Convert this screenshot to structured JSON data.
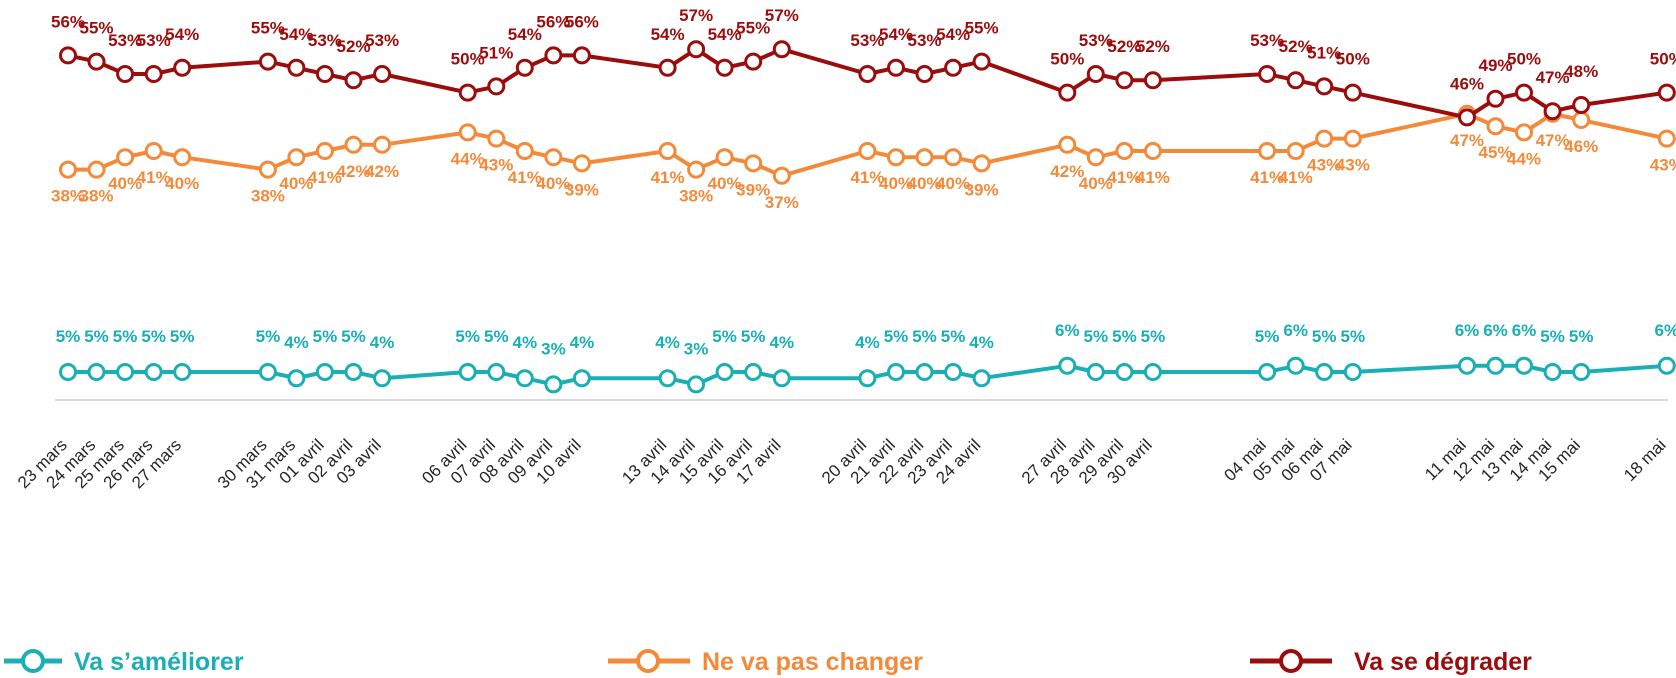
{
  "chart_data": {
    "type": "line",
    "title": "",
    "xlabel": "",
    "ylabel": "",
    "ylim": [
      0,
      60
    ],
    "grid": false,
    "legend_position": "bottom",
    "colors": {
      "improve": "#1aafb5",
      "unchanged": "#f38a3a",
      "worsen": "#9b0d0d",
      "axis": "#d9d9d9",
      "tick_text": "#262626"
    },
    "x": [
      "23 mars",
      "24 mars",
      "25 mars",
      "26 mars",
      "27 mars",
      "30 mars",
      "31 mars",
      "01 avril",
      "02 avril",
      "03 avril",
      "06 avril",
      "07 avril",
      "08 avril",
      "09 avril",
      "10 avril",
      "13 avril",
      "14 avril",
      "15 avril",
      "16 avril",
      "17 avril",
      "20 avril",
      "21 avril",
      "22 avril",
      "23 avril",
      "24 avril",
      "27 avril",
      "28 avril",
      "29 avril",
      "30 avril",
      "04 mai",
      "05 mai",
      "06 mai",
      "07 mai",
      "11 mai",
      "12 mai",
      "13 mai",
      "14 mai",
      "15 mai",
      "18 mai"
    ],
    "day_index": [
      0,
      1,
      2,
      3,
      4,
      7,
      8,
      9,
      10,
      11,
      14,
      15,
      16,
      17,
      18,
      21,
      22,
      23,
      24,
      25,
      28,
      29,
      30,
      31,
      32,
      35,
      36,
      37,
      38,
      42,
      43,
      44,
      45,
      49,
      50,
      51,
      52,
      53,
      56
    ],
    "series": [
      {
        "name": "Va s’améliorer",
        "key": "improve",
        "values": [
          5,
          5,
          5,
          5,
          5,
          5,
          4,
          5,
          5,
          4,
          5,
          5,
          4,
          3,
          4,
          4,
          3,
          5,
          5,
          4,
          4,
          5,
          5,
          5,
          4,
          6,
          5,
          5,
          5,
          5,
          6,
          5,
          5,
          6,
          6,
          6,
          5,
          5,
          6
        ],
        "labels": [
          "5%",
          "5%",
          "5%",
          "5%",
          "5%",
          "5%",
          "4%",
          "5%",
          "5%",
          "4%",
          "5%",
          "5%",
          "4%",
          "3%",
          "4%",
          "4%",
          "3%",
          "5%",
          "5%",
          "4%",
          "4%",
          "5%",
          "5%",
          "5%",
          "4%",
          "6%",
          "5%",
          "5%",
          "5%",
          "5%",
          "6%",
          "5%",
          "5%",
          "6%",
          "6%",
          "6%",
          "5%",
          "5%",
          "6%"
        ]
      },
      {
        "name": "Ne va pas changer",
        "key": "unchanged",
        "values": [
          38,
          38,
          40,
          41,
          40,
          38,
          40,
          41,
          42,
          42,
          44,
          43,
          41,
          40,
          39,
          41,
          38,
          40,
          39,
          37,
          41,
          40,
          40,
          40,
          39,
          42,
          40,
          41,
          41,
          41,
          41,
          43,
          43,
          47,
          45,
          44,
          47,
          46,
          43
        ],
        "labels": [
          "38%",
          "38%",
          "40%",
          "41%",
          "40%",
          "38%",
          "40%",
          "41%",
          "42%",
          "42%",
          "44%",
          "43%",
          "41%",
          "40%",
          "39%",
          "41%",
          "38%",
          "40%",
          "39%",
          "37%",
          "41%",
          "40%",
          "40%",
          "40%",
          "39%",
          "42%",
          "40%",
          "41%",
          "41%",
          "41%",
          "41%",
          "43%",
          "43%",
          "47%",
          "45%",
          "44%",
          "47%",
          "46%",
          "43%"
        ]
      },
      {
        "name": "Va se dégrader",
        "key": "worsen",
        "values": [
          56,
          55,
          53,
          53,
          54,
          55,
          54,
          53,
          52,
          53,
          50,
          51,
          54,
          56,
          56,
          54,
          57,
          54,
          55,
          57,
          53,
          54,
          53,
          54,
          55,
          50,
          53,
          52,
          52,
          53,
          52,
          51,
          50,
          46,
          49,
          50,
          47,
          48,
          50
        ],
        "labels": [
          "56%",
          "55%",
          "53%",
          "53%",
          "54%",
          "55%",
          "54%",
          "53%",
          "52%",
          "53%",
          "50%",
          "51%",
          "54%",
          "56%",
          "56%",
          "54%",
          "57%",
          "54%",
          "55%",
          "57%",
          "53%",
          "54%",
          "53%",
          "54%",
          "55%",
          "50%",
          "53%",
          "52%",
          "52%",
          "53%",
          "52%",
          "51%",
          "50%",
          "46%",
          "49%",
          "50%",
          "47%",
          "48%",
          "50%"
        ]
      }
    ]
  },
  "legend": {
    "improve": "Va s’améliorer",
    "unchanged": "Ne va pas changer",
    "worsen": "Va se dégrader"
  }
}
